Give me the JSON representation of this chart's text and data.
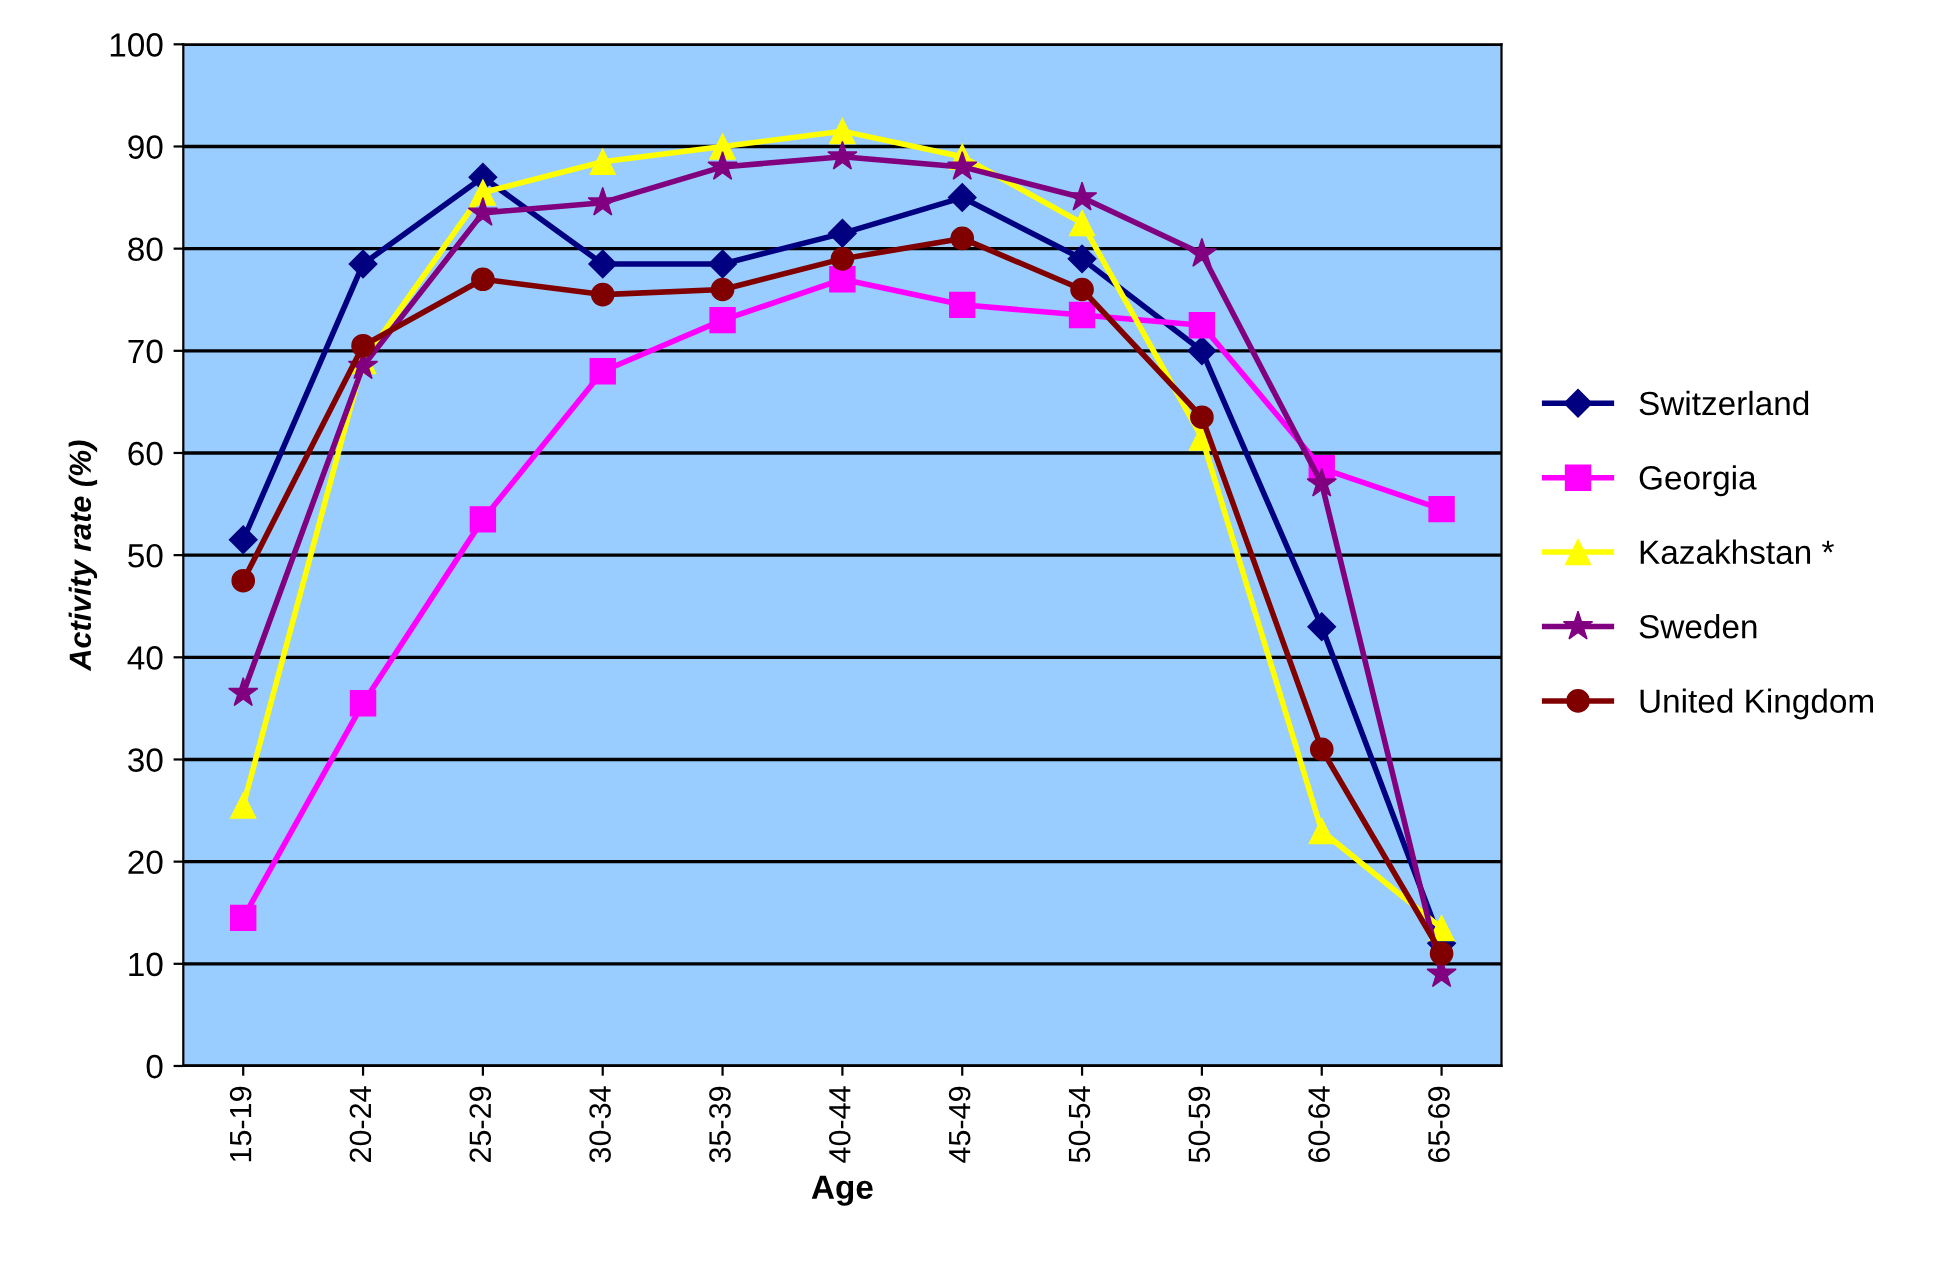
{
  "chart_data": {
    "type": "line",
    "xlabel": "Age",
    "ylabel": "Activity rate (%)",
    "categories": [
      "15-19",
      "20-24",
      "25-29",
      "30-34",
      "35-39",
      "40-44",
      "45-49",
      "50-54",
      "50-59",
      "60-64",
      "65-69"
    ],
    "series": [
      {
        "name": "Switzerland",
        "color": "#000080",
        "marker": "diamond",
        "values": [
          51.5,
          78.5,
          87,
          78.5,
          78.5,
          81.5,
          85,
          79,
          70,
          43,
          12
        ]
      },
      {
        "name": "Georgia",
        "color": "#ff00ff",
        "marker": "square",
        "values": [
          14.5,
          35.5,
          53.5,
          68,
          73,
          77,
          74.5,
          73.5,
          72.5,
          58.5,
          54.5
        ]
      },
      {
        "name": "Kazakhstan *",
        "color": "#ffff00",
        "marker": "triangle",
        "values": [
          25.5,
          69,
          85.5,
          88.5,
          90,
          91.5,
          89,
          82.5,
          61.5,
          23,
          13.5
        ]
      },
      {
        "name": "Sweden",
        "color": "#800080",
        "marker": "star",
        "values": [
          36.5,
          68.5,
          83.5,
          84.5,
          88,
          89,
          88,
          85,
          79.5,
          57,
          9
        ]
      },
      {
        "name": "United Kingdom",
        "color": "#800000",
        "marker": "circle",
        "values": [
          47.5,
          70.5,
          77,
          75.5,
          76,
          79,
          81,
          76,
          63.5,
          31,
          11
        ]
      }
    ],
    "ylim": [
      0,
      100
    ],
    "yticks": [
      0,
      10,
      20,
      30,
      40,
      50,
      60,
      70,
      80,
      90,
      100
    ],
    "grid": "y",
    "legend": "right"
  }
}
